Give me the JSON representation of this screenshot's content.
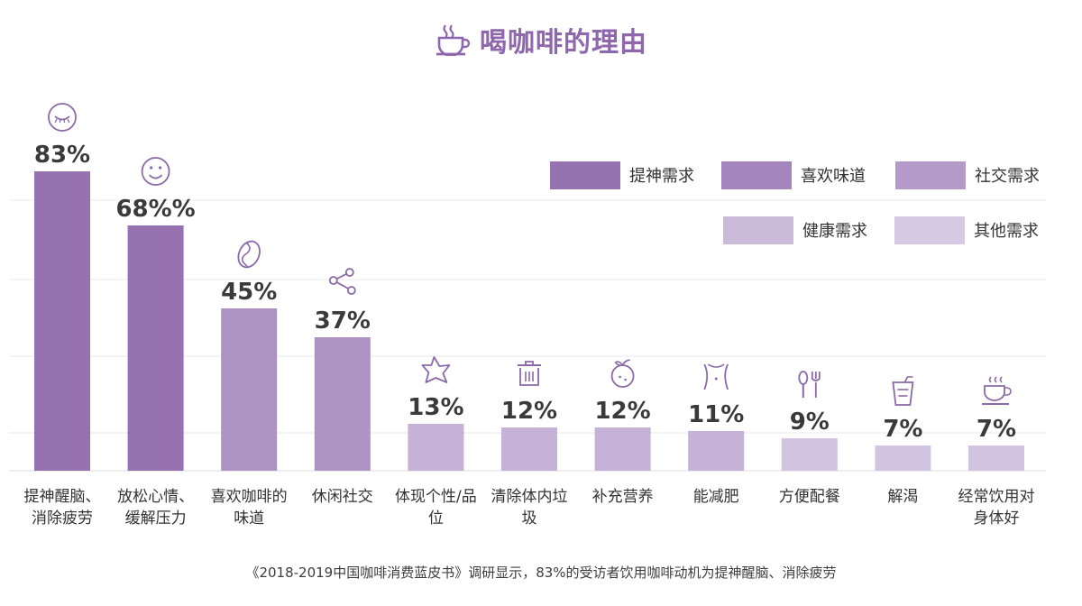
{
  "title": "喝咖啡的理由",
  "footnote": "《2018-2019中国咖啡消费蓝皮书》调研显示，83%的受访者饮用咖啡动机为提神醒脑、消除疲劳",
  "colors": {
    "title": "#8e67ad",
    "grid": "#e8e8e8",
    "icon": "#8a6aa8",
    "value_label": "#3a3a3a"
  },
  "chart_data": {
    "type": "bar",
    "title": "喝咖啡的理由",
    "xlabel": "",
    "ylabel": "",
    "ylim": [
      0,
      100
    ],
    "grid": true,
    "legend_position": "top-right",
    "categories": [
      [
        "提神醒脑、",
        "消除疲劳"
      ],
      [
        "放松心情、",
        "缓解压力"
      ],
      [
        "喜欢咖啡的",
        "味道"
      ],
      [
        "休闲社交"
      ],
      [
        "体现个性/品",
        "位"
      ],
      [
        "清除体内垃",
        "圾"
      ],
      [
        "补充营养"
      ],
      [
        "能减肥"
      ],
      [
        "方便配餐"
      ],
      [
        "解渴"
      ],
      [
        "经常饮用对",
        "身体好"
      ]
    ],
    "values": [
      83,
      68,
      45,
      37,
      13,
      12,
      12,
      11,
      9,
      7,
      7
    ],
    "value_labels": [
      "83%",
      "68%%",
      "45%",
      "37%",
      "13%",
      "12%",
      "12%",
      "11%",
      "9%",
      "7%",
      "7%"
    ],
    "icons": [
      "closed-eye-icon",
      "smiley-face-icon",
      "coffee-bean-icon",
      "share-network-icon",
      "star-icon",
      "trash-can-icon",
      "orange-fruit-icon",
      "waist-icon",
      "spoon-fork-icon",
      "drink-cup-icon",
      "coffee-cup-icon"
    ],
    "bar_colors": [
      "#9673b0",
      "#9673b0",
      "#ad93c4",
      "#ad93c4",
      "#c5b2d6",
      "#c5b2d6",
      "#c5b2d6",
      "#c5b2d6",
      "#d2c4e1",
      "#d2c4e1",
      "#d2c4e1"
    ],
    "legend": [
      {
        "label": "提神需求",
        "color": "#9673b0"
      },
      {
        "label": "喜欢味道",
        "color": "#a585be"
      },
      {
        "label": "社交需求",
        "color": "#b49ac9"
      },
      {
        "label": "健康需求",
        "color": "#cbbad9"
      },
      {
        "label": "其他需求",
        "color": "#d6c9e3"
      }
    ]
  }
}
